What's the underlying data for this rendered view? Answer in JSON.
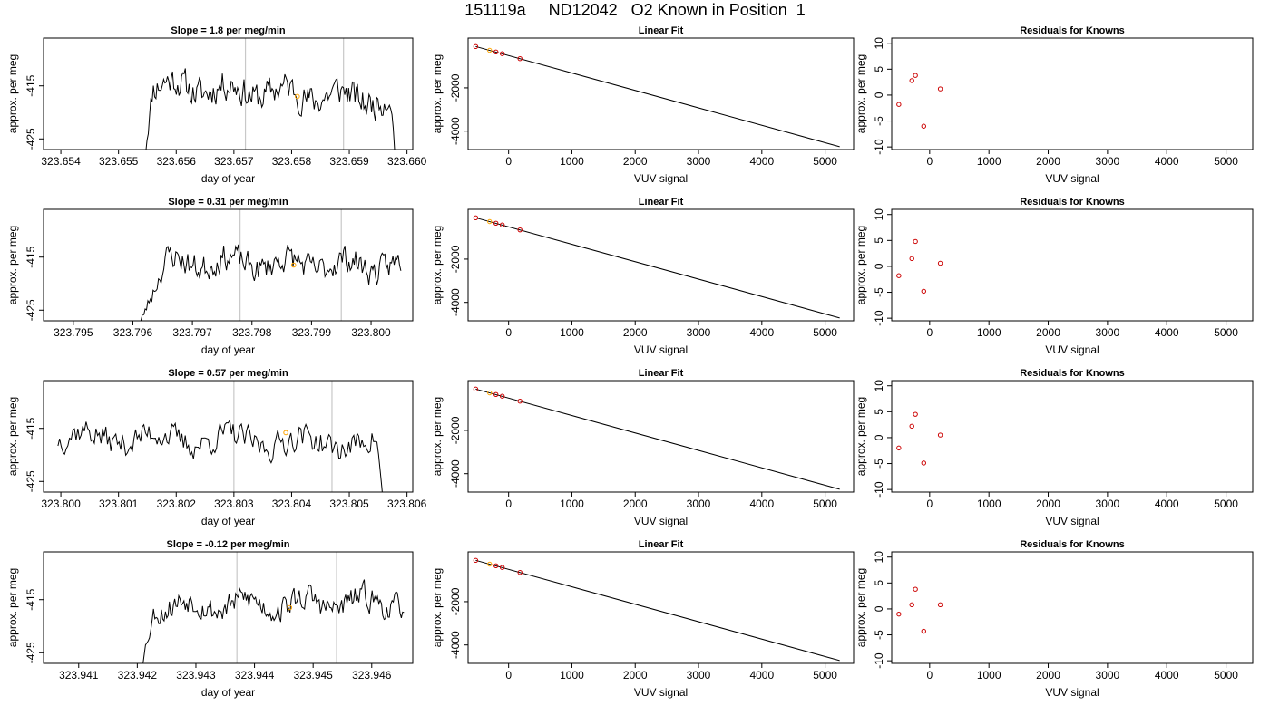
{
  "page": {
    "title": "151119a     ND12042   O2 Known in Position  1"
  },
  "chart_data": [
    {
      "type": "line",
      "panel": "timeseries",
      "row": 0,
      "title": "Slope =  1.8  per meg/min",
      "xlabel": "day of year",
      "ylabel": "approx. per meg",
      "xlim": [
        323.6537,
        323.6601
      ],
      "ylim": [
        -427,
        -406
      ],
      "xticks": [
        323.654,
        323.655,
        323.656,
        323.657,
        323.658,
        323.659,
        323.66
      ],
      "xtick_labels": [
        "323.654",
        "323.655",
        "323.656",
        "323.657",
        "323.658",
        "323.659",
        "323.660"
      ],
      "yticks": [
        -425,
        -415
      ],
      "ytick_labels": [
        "-425",
        "-415"
      ],
      "vlines": [
        323.6572,
        323.6589
      ],
      "series_params": {
        "x_start": 323.65545,
        "x_end": 323.65985,
        "level": -416.2,
        "ramp_end": 323.6556,
        "drift": -1.5,
        "noise": 1.8,
        "seed": 11,
        "drop_end": true
      },
      "marker": {
        "x": 323.6581,
        "y": -417.0,
        "color": "#ffa500"
      }
    },
    {
      "type": "line",
      "panel": "fit",
      "row": 0,
      "title": "Linear Fit",
      "xlabel": "VUV signal",
      "ylabel": "approx. per meg",
      "xlim": [
        -640,
        5450
      ],
      "ylim": [
        -4850,
        300
      ],
      "xticks": [
        0,
        1000,
        2000,
        3000,
        4000,
        5000
      ],
      "xtick_labels": [
        "0",
        "1000",
        "2000",
        "3000",
        "4000",
        "5000"
      ],
      "yticks": [
        -4000,
        -2000
      ],
      "ytick_labels": [
        "-4000",
        "-2000"
      ],
      "line": {
        "x": [
          -520,
          5230
        ],
        "y": [
          -90,
          -4720
        ]
      },
      "points": [
        {
          "x": -520,
          "y": -90,
          "color": "#cc0000"
        },
        {
          "x": -300,
          "y": -265,
          "color": "#ffa500"
        },
        {
          "x": -200,
          "y": -340,
          "color": "#cc0000"
        },
        {
          "x": -100,
          "y": -420,
          "color": "#cc0000"
        },
        {
          "x": 180,
          "y": -650,
          "color": "#cc0000"
        }
      ]
    },
    {
      "type": "scatter",
      "panel": "residuals",
      "row": 0,
      "title": "Residuals for Knowns",
      "xlabel": "VUV signal",
      "ylabel": "approx. per meg",
      "xlim": [
        -640,
        5450
      ],
      "ylim": [
        -10.5,
        11
      ],
      "xticks": [
        0,
        1000,
        2000,
        3000,
        4000,
        5000
      ],
      "xtick_labels": [
        "0",
        "1000",
        "2000",
        "3000",
        "4000",
        "5000"
      ],
      "yticks": [
        -10,
        -5,
        0,
        5,
        10
      ],
      "ytick_labels": [
        "-10",
        "-5",
        "0",
        "5",
        "10"
      ],
      "points": [
        {
          "x": -520,
          "y": -1.8
        },
        {
          "x": -300,
          "y": 2.8
        },
        {
          "x": -240,
          "y": 3.8
        },
        {
          "x": -100,
          "y": -6.0
        },
        {
          "x": 180,
          "y": 1.2
        }
      ]
    },
    {
      "type": "line",
      "panel": "timeseries",
      "row": 1,
      "title": "Slope =  0.31  per meg/min",
      "xlabel": "day of year",
      "ylabel": "approx. per meg",
      "xlim": [
        323.7945,
        323.8007
      ],
      "ylim": [
        -427,
        -406
      ],
      "xticks": [
        323.795,
        323.796,
        323.797,
        323.798,
        323.799,
        323.8
      ],
      "xtick_labels": [
        "323.795",
        "323.796",
        "323.797",
        "323.798",
        "323.799",
        "323.800"
      ],
      "yticks": [
        -425,
        -415
      ],
      "ytick_labels": [
        "-425",
        "-415"
      ],
      "vlines": [
        323.7978,
        323.7995
      ],
      "series_params": {
        "x_start": 323.79605,
        "x_end": 323.8005,
        "level": -416.2,
        "ramp_end": 323.7966,
        "drift": -0.5,
        "noise": 1.6,
        "seed": 23,
        "drop_end": false
      },
      "marker": {
        "x": 323.7987,
        "y": -416.5,
        "color": "#ffa500"
      }
    },
    {
      "type": "line",
      "panel": "fit",
      "row": 1,
      "title": "Linear Fit",
      "xlabel": "VUV signal",
      "ylabel": "approx. per meg",
      "xlim": [
        -640,
        5450
      ],
      "ylim": [
        -4850,
        300
      ],
      "xticks": [
        0,
        1000,
        2000,
        3000,
        4000,
        5000
      ],
      "xtick_labels": [
        "0",
        "1000",
        "2000",
        "3000",
        "4000",
        "5000"
      ],
      "yticks": [
        -4000,
        -2000
      ],
      "ytick_labels": [
        "-4000",
        "-2000"
      ],
      "line": {
        "x": [
          -520,
          5230
        ],
        "y": [
          -90,
          -4720
        ]
      },
      "points": [
        {
          "x": -520,
          "y": -90,
          "color": "#cc0000"
        },
        {
          "x": -300,
          "y": -265,
          "color": "#ffa500"
        },
        {
          "x": -200,
          "y": -340,
          "color": "#cc0000"
        },
        {
          "x": -100,
          "y": -420,
          "color": "#cc0000"
        },
        {
          "x": 180,
          "y": -650,
          "color": "#cc0000"
        }
      ]
    },
    {
      "type": "scatter",
      "panel": "residuals",
      "row": 1,
      "title": "Residuals for Knowns",
      "xlabel": "VUV signal",
      "ylabel": "approx. per meg",
      "xlim": [
        -640,
        5450
      ],
      "ylim": [
        -10.5,
        11
      ],
      "xticks": [
        0,
        1000,
        2000,
        3000,
        4000,
        5000
      ],
      "xtick_labels": [
        "0",
        "1000",
        "2000",
        "3000",
        "4000",
        "5000"
      ],
      "yticks": [
        -10,
        -5,
        0,
        5,
        10
      ],
      "ytick_labels": [
        "-10",
        "-5",
        "0",
        "5",
        "10"
      ],
      "points": [
        {
          "x": -520,
          "y": -1.8
        },
        {
          "x": -300,
          "y": 1.5
        },
        {
          "x": -240,
          "y": 4.8
        },
        {
          "x": -100,
          "y": -4.8
        },
        {
          "x": 180,
          "y": 0.6
        }
      ]
    },
    {
      "type": "line",
      "panel": "timeseries",
      "row": 2,
      "title": "Slope =  0.57  per meg/min",
      "xlabel": "day of year",
      "ylabel": "approx. per meg",
      "xlim": [
        323.7997,
        323.8061
      ],
      "ylim": [
        -427,
        -406
      ],
      "xticks": [
        323.8,
        323.801,
        323.802,
        323.803,
        323.804,
        323.805,
        323.806
      ],
      "xtick_labels": [
        "323.800",
        "323.801",
        "323.802",
        "323.803",
        "323.804",
        "323.805",
        "323.806"
      ],
      "yticks": [
        -425,
        -415
      ],
      "ytick_labels": [
        "-425",
        "-415"
      ],
      "vlines": [
        323.803,
        323.8047
      ],
      "series_params": {
        "x_start": 323.79995,
        "x_end": 323.80565,
        "level": -417.2,
        "ramp_end": 323.79995,
        "drift": -0.8,
        "noise": 1.6,
        "seed": 37,
        "drop_end": true
      },
      "marker": {
        "x": 323.8039,
        "y": -415.8,
        "color": "#ffa500"
      }
    },
    {
      "type": "line",
      "panel": "fit",
      "row": 2,
      "title": "Linear Fit",
      "xlabel": "VUV signal",
      "ylabel": "approx. per meg",
      "xlim": [
        -640,
        5450
      ],
      "ylim": [
        -4850,
        300
      ],
      "xticks": [
        0,
        1000,
        2000,
        3000,
        4000,
        5000
      ],
      "xtick_labels": [
        "0",
        "1000",
        "2000",
        "3000",
        "4000",
        "5000"
      ],
      "yticks": [
        -4000,
        -2000
      ],
      "ytick_labels": [
        "-4000",
        "-2000"
      ],
      "line": {
        "x": [
          -520,
          5230
        ],
        "y": [
          -90,
          -4720
        ]
      },
      "points": [
        {
          "x": -520,
          "y": -90,
          "color": "#cc0000"
        },
        {
          "x": -300,
          "y": -265,
          "color": "#ffa500"
        },
        {
          "x": -200,
          "y": -340,
          "color": "#cc0000"
        },
        {
          "x": -100,
          "y": -420,
          "color": "#cc0000"
        },
        {
          "x": 180,
          "y": -650,
          "color": "#cc0000"
        }
      ]
    },
    {
      "type": "scatter",
      "panel": "residuals",
      "row": 2,
      "title": "Residuals for Knowns",
      "xlabel": "VUV signal",
      "ylabel": "approx. per meg",
      "xlim": [
        -640,
        5450
      ],
      "ylim": [
        -10.5,
        11
      ],
      "xticks": [
        0,
        1000,
        2000,
        3000,
        4000,
        5000
      ],
      "xtick_labels": [
        "0",
        "1000",
        "2000",
        "3000",
        "4000",
        "5000"
      ],
      "yticks": [
        -10,
        -5,
        0,
        5,
        10
      ],
      "ytick_labels": [
        "-10",
        "-5",
        "0",
        "5",
        "10"
      ],
      "points": [
        {
          "x": -520,
          "y": -2.0
        },
        {
          "x": -300,
          "y": 2.2
        },
        {
          "x": -240,
          "y": 4.5
        },
        {
          "x": -100,
          "y": -4.9
        },
        {
          "x": 180,
          "y": 0.5
        }
      ]
    },
    {
      "type": "line",
      "panel": "timeseries",
      "row": 3,
      "title": "Slope =  -0.12  per meg/min",
      "xlabel": "day of year",
      "ylabel": "approx. per meg",
      "xlim": [
        323.9404,
        323.9467
      ],
      "ylim": [
        -427,
        -406
      ],
      "xticks": [
        323.941,
        323.942,
        323.943,
        323.944,
        323.945,
        323.946
      ],
      "xtick_labels": [
        "323.941",
        "323.942",
        "323.943",
        "323.944",
        "323.945",
        "323.946"
      ],
      "yticks": [
        -425,
        -415
      ],
      "ytick_labels": [
        "-425",
        "-415"
      ],
      "vlines": [
        323.9437,
        323.9454
      ],
      "series_params": {
        "x_start": 323.94205,
        "x_end": 323.94655,
        "level": -415.8,
        "ramp_end": 323.9423,
        "drift": 0.4,
        "noise": 1.5,
        "seed": 53,
        "drop_end": false
      },
      "marker": {
        "x": 323.9446,
        "y": -416.5,
        "color": "#ffa500"
      }
    },
    {
      "type": "line",
      "panel": "fit",
      "row": 3,
      "title": "Linear Fit",
      "xlabel": "VUV signal",
      "ylabel": "approx. per meg",
      "xlim": [
        -640,
        5450
      ],
      "ylim": [
        -4850,
        300
      ],
      "xticks": [
        0,
        1000,
        2000,
        3000,
        4000,
        5000
      ],
      "xtick_labels": [
        "0",
        "1000",
        "2000",
        "3000",
        "4000",
        "5000"
      ],
      "yticks": [
        -4000,
        -2000
      ],
      "ytick_labels": [
        "-4000",
        "-2000"
      ],
      "line": {
        "x": [
          -520,
          5230
        ],
        "y": [
          -90,
          -4720
        ]
      },
      "points": [
        {
          "x": -520,
          "y": -90,
          "color": "#cc0000"
        },
        {
          "x": -300,
          "y": -265,
          "color": "#ffa500"
        },
        {
          "x": -200,
          "y": -340,
          "color": "#cc0000"
        },
        {
          "x": -100,
          "y": -420,
          "color": "#cc0000"
        },
        {
          "x": 180,
          "y": -650,
          "color": "#cc0000"
        }
      ]
    },
    {
      "type": "scatter",
      "panel": "residuals",
      "row": 3,
      "title": "Residuals for Knowns",
      "xlabel": "VUV signal",
      "ylabel": "approx. per meg",
      "xlim": [
        -640,
        5450
      ],
      "ylim": [
        -10.5,
        11
      ],
      "xticks": [
        0,
        1000,
        2000,
        3000,
        4000,
        5000
      ],
      "xtick_labels": [
        "0",
        "1000",
        "2000",
        "3000",
        "4000",
        "5000"
      ],
      "yticks": [
        -10,
        -5,
        0,
        5,
        10
      ],
      "ytick_labels": [
        "-10",
        "-5",
        "0",
        "5",
        "10"
      ],
      "points": [
        {
          "x": -520,
          "y": -1.0
        },
        {
          "x": -300,
          "y": 0.8
        },
        {
          "x": -240,
          "y": 3.8
        },
        {
          "x": -100,
          "y": -4.3
        },
        {
          "x": 180,
          "y": 0.8
        }
      ]
    }
  ]
}
